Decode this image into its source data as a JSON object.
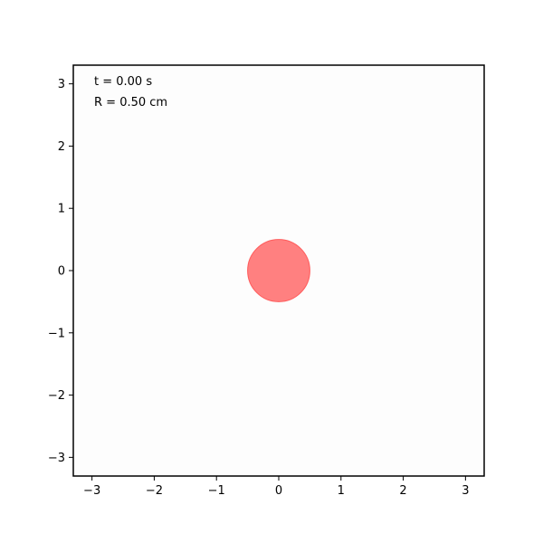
{
  "chart_data": {
    "type": "scatter",
    "title": "",
    "xlabel": "",
    "ylabel": "",
    "xlim": [
      -3.3,
      3.3
    ],
    "ylim": [
      -3.3,
      3.3
    ],
    "x_ticks": [
      -3,
      -2,
      -1,
      0,
      1,
      2,
      3
    ],
    "y_ticks": [
      -3,
      -2,
      -1,
      0,
      1,
      2,
      3
    ],
    "x_tick_labels": [
      "−3",
      "−2",
      "−1",
      "0",
      "1",
      "2",
      "3"
    ],
    "y_tick_labels": [
      "−3",
      "−2",
      "−1",
      "0",
      "1",
      "2",
      "3"
    ],
    "grid": false,
    "aspect": "equal",
    "circles": [
      {
        "center_x": 0,
        "center_y": 0,
        "radius": 0.5,
        "fill": "#ff8080",
        "edge": "#ff5a5a"
      }
    ],
    "annotations": {
      "time": "t = 0.00 s",
      "radius": "R = 0.50 cm"
    },
    "axes_background": "#fdfdfd"
  }
}
